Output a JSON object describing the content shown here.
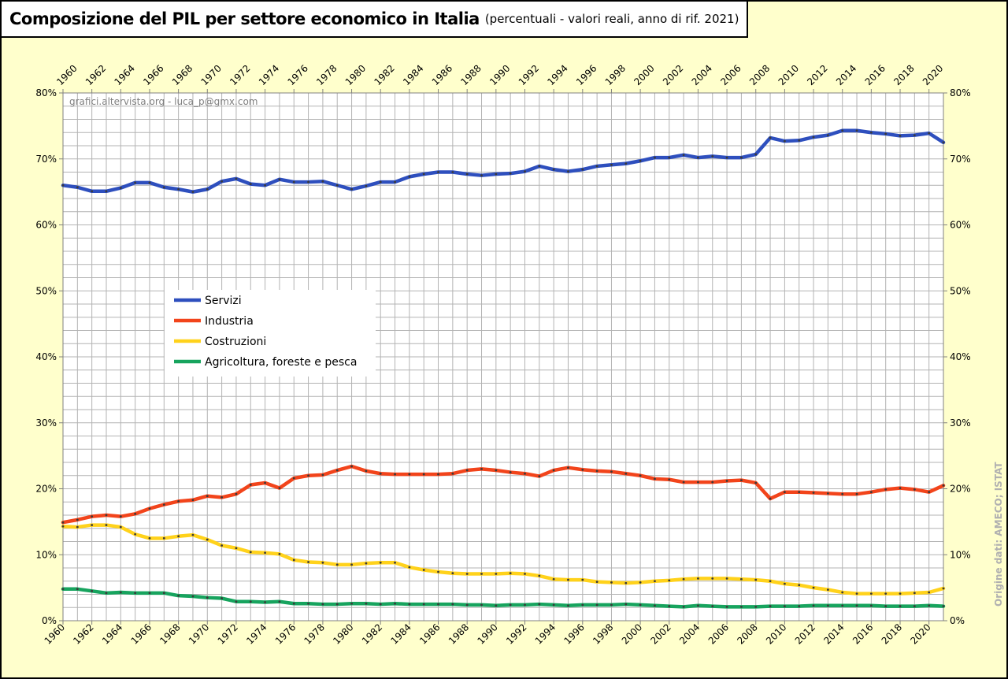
{
  "title": "Composizione del PIL per settore economico in Italia",
  "subtitle": "(percentuali - valori reali, anno di rif. 2021)",
  "watermark": "grafici.altervista.org - luca_p@gmx.com",
  "source": "Origine dati: AMECO; ISTAT",
  "colors": {
    "background": "#ffffcc",
    "plot_background": "#ffffff",
    "grid": "#b3b3b3",
    "marker": "#3a3a3a"
  },
  "chart_data": {
    "type": "line",
    "x_start": 1960,
    "x_end": 2021,
    "x_tick_labels": [
      "1960",
      "1962",
      "1964",
      "1966",
      "1968",
      "1970",
      "1972",
      "1974",
      "1976",
      "1978",
      "1980",
      "1982",
      "1984",
      "1986",
      "1988",
      "1990",
      "1992",
      "1994",
      "1996",
      "1998",
      "2000",
      "2002",
      "2004",
      "2006",
      "2008",
      "2010",
      "2012",
      "2014",
      "2016",
      "2018",
      "2020"
    ],
    "y_tick_labels": [
      "0%",
      "10%",
      "20%",
      "30%",
      "40%",
      "50%",
      "60%",
      "70%",
      "80%"
    ],
    "ylim": [
      0,
      80
    ],
    "grid": true,
    "legend_position": "center-left",
    "series": [
      {
        "name": "Servizi",
        "color": "#2e4fbe",
        "values": [
          66.0,
          65.7,
          65.1,
          65.1,
          65.6,
          66.4,
          66.4,
          65.7,
          65.4,
          65.0,
          65.4,
          66.6,
          67.0,
          66.2,
          66.0,
          66.9,
          66.5,
          66.5,
          66.6,
          66.0,
          65.4,
          65.9,
          66.5,
          66.5,
          67.3,
          67.7,
          68.0,
          68.0,
          67.7,
          67.5,
          67.7,
          67.8,
          68.1,
          68.9,
          68.4,
          68.1,
          68.4,
          68.9,
          69.1,
          69.3,
          69.7,
          70.2,
          70.2,
          70.6,
          70.2,
          70.4,
          70.2,
          70.2,
          70.7,
          73.2,
          72.7,
          72.8,
          73.3,
          73.6,
          74.3,
          74.3,
          74.0,
          73.8,
          73.5,
          73.6,
          73.9,
          72.5
        ]
      },
      {
        "name": "Industria",
        "color": "#f2441b",
        "values": [
          14.9,
          15.3,
          15.8,
          16.0,
          15.8,
          16.2,
          17.0,
          17.6,
          18.1,
          18.3,
          18.9,
          18.7,
          19.2,
          20.6,
          20.9,
          20.1,
          21.6,
          22.0,
          22.1,
          22.8,
          23.4,
          22.7,
          22.3,
          22.2,
          22.2,
          22.2,
          22.2,
          22.3,
          22.8,
          23.0,
          22.8,
          22.5,
          22.3,
          21.9,
          22.8,
          23.2,
          22.9,
          22.7,
          22.6,
          22.3,
          22.0,
          21.5,
          21.4,
          21.0,
          21.0,
          21.0,
          21.2,
          21.3,
          20.9,
          18.5,
          19.5,
          19.5,
          19.4,
          19.3,
          19.2,
          19.2,
          19.5,
          19.9,
          20.1,
          19.9,
          19.5,
          20.5
        ]
      },
      {
        "name": "Costruzioni",
        "color": "#ffd21b",
        "values": [
          14.3,
          14.2,
          14.5,
          14.5,
          14.2,
          13.1,
          12.5,
          12.5,
          12.8,
          13.0,
          12.3,
          11.4,
          11.0,
          10.4,
          10.3,
          10.1,
          9.2,
          8.9,
          8.8,
          8.5,
          8.5,
          8.7,
          8.8,
          8.8,
          8.1,
          7.7,
          7.4,
          7.2,
          7.1,
          7.1,
          7.1,
          7.2,
          7.1,
          6.8,
          6.3,
          6.2,
          6.2,
          5.9,
          5.8,
          5.7,
          5.8,
          6.0,
          6.1,
          6.3,
          6.4,
          6.4,
          6.4,
          6.3,
          6.2,
          6.0,
          5.6,
          5.4,
          5.0,
          4.7,
          4.3,
          4.1,
          4.1,
          4.1,
          4.1,
          4.2,
          4.3,
          4.9
        ]
      },
      {
        "name": "Agricoltura, foreste e pesca",
        "color": "#17a45e",
        "values": [
          4.8,
          4.8,
          4.5,
          4.2,
          4.3,
          4.2,
          4.2,
          4.2,
          3.8,
          3.7,
          3.5,
          3.4,
          2.9,
          2.9,
          2.8,
          2.9,
          2.6,
          2.6,
          2.5,
          2.5,
          2.6,
          2.6,
          2.5,
          2.6,
          2.5,
          2.5,
          2.5,
          2.5,
          2.4,
          2.4,
          2.3,
          2.4,
          2.4,
          2.5,
          2.4,
          2.3,
          2.4,
          2.4,
          2.4,
          2.5,
          2.4,
          2.3,
          2.2,
          2.1,
          2.3,
          2.2,
          2.1,
          2.1,
          2.1,
          2.2,
          2.2,
          2.2,
          2.3,
          2.3,
          2.3,
          2.3,
          2.3,
          2.2,
          2.2,
          2.2,
          2.3,
          2.2
        ]
      }
    ]
  }
}
